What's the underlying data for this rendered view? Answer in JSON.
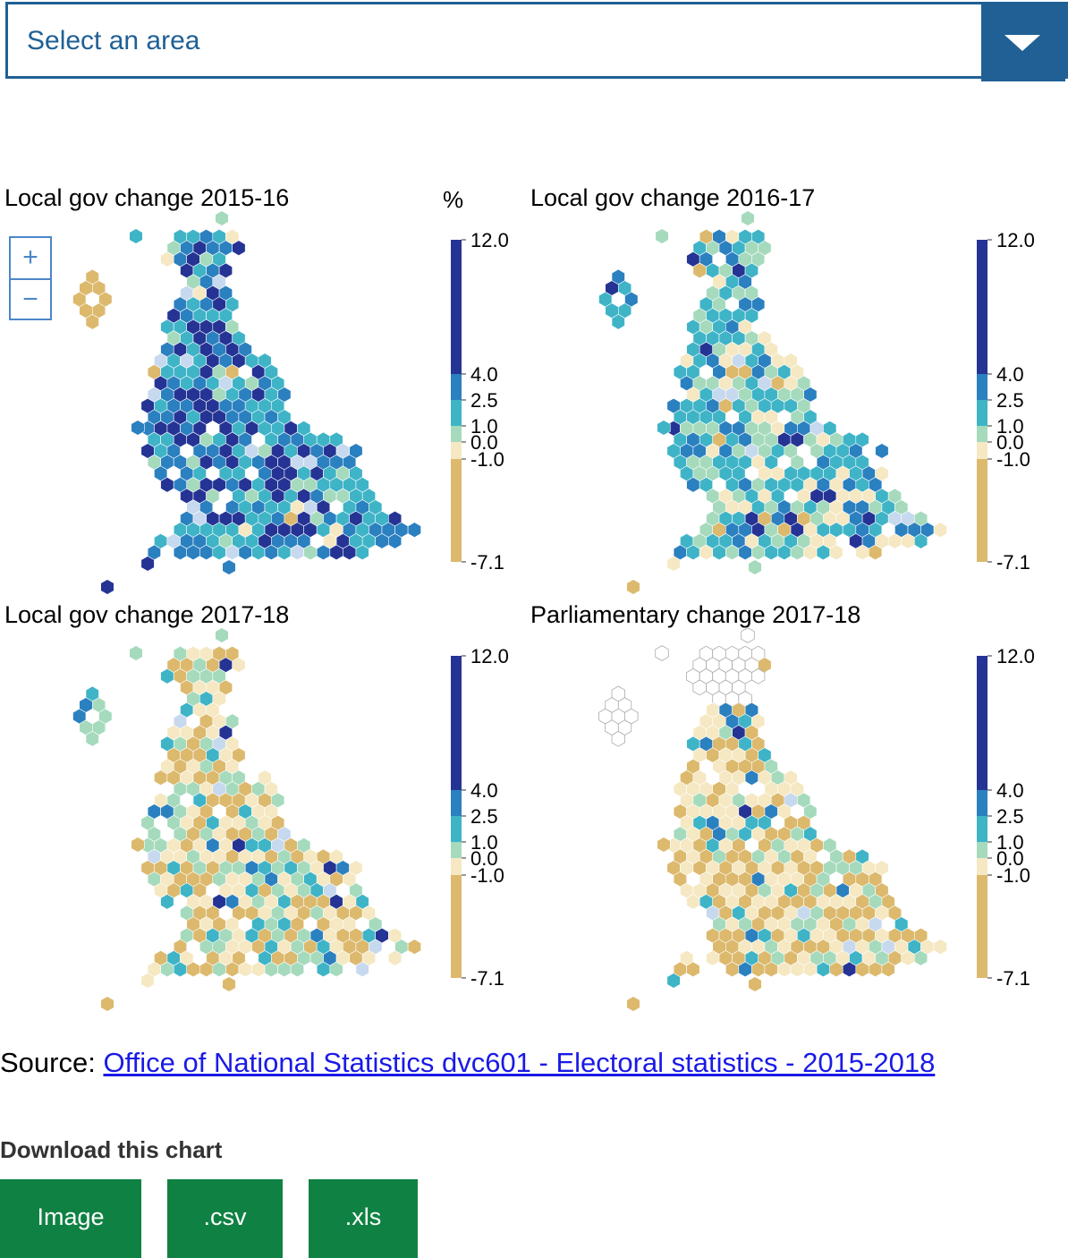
{
  "select": {
    "placeholder": "Select an area"
  },
  "unit": "%",
  "zoom": {
    "in": "+",
    "out": "−"
  },
  "legend": {
    "ticks": [
      "12.0",
      "4.0",
      "2.5",
      "1.0",
      "0.0",
      "-1.0",
      "-7.1"
    ]
  },
  "colors": {
    "scale": [
      "#dcb96d",
      "#f5e8c2",
      "#a6dabd",
      "#3fb4c7",
      "#2b80c0",
      "#253494"
    ],
    "nodata": "#ffffff",
    "brand": "#206095",
    "download": "#0f8243",
    "zoom": "#4b87c8"
  },
  "chart_data": [
    {
      "type": "heatmap",
      "title": "Local gov change 2015-16",
      "scale": "diverging",
      "range": [
        -7.1,
        12.0
      ],
      "dominant_band": "1.0 to 12.0"
    },
    {
      "type": "heatmap",
      "title": "Local gov change 2016-17",
      "scale": "diverging",
      "range": [
        -7.1,
        12.0
      ],
      "dominant_band": "0.0 to 4.0"
    },
    {
      "type": "heatmap",
      "title": "Local gov change 2017-18",
      "scale": "diverging",
      "range": [
        -7.1,
        12.0
      ],
      "dominant_band": "-1.0 to 1.0"
    },
    {
      "type": "heatmap",
      "title": "Parliamentary change 2017-18",
      "scale": "diverging",
      "range": [
        -7.1,
        12.0
      ],
      "dominant_band": "-7.1 to 0.0",
      "nodata_region": "Scotland"
    }
  ],
  "source": {
    "label": "Source:",
    "link_text": "Office of National Statistics dvc601 - Electoral statistics - 2015-2018"
  },
  "download": {
    "title": "Download this chart",
    "buttons": [
      "Image",
      ".csv",
      ".xls"
    ]
  }
}
